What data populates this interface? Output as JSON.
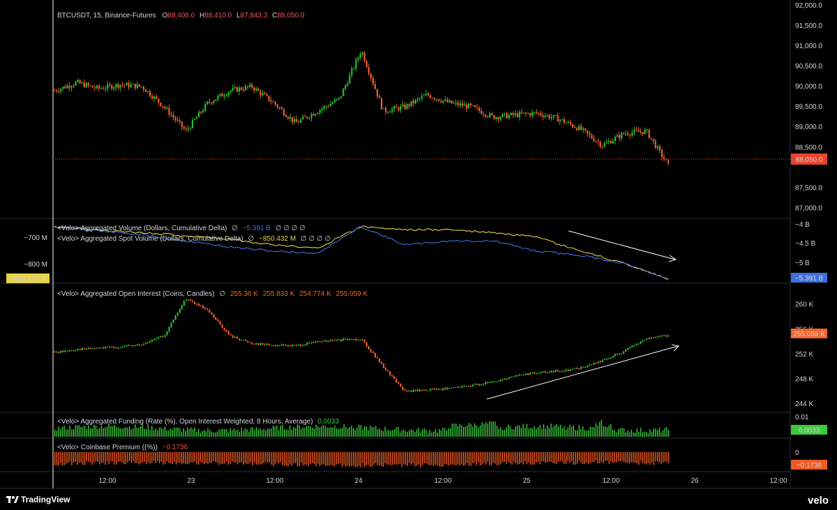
{
  "colors": {
    "background": "#000000",
    "up": "#26a69a",
    "up_bright": "#2ebd2e",
    "down": "#ef5f2a",
    "ohlc_value": "#f7525f",
    "price_line": "#e8452c",
    "delta_futures": "#3d6fe0",
    "delta_spot": "#e8d23f",
    "oi_tag": "#f2662b",
    "funding": "#3cc93c",
    "premium": "#f05a22",
    "separator": "#2a2e39",
    "text": "#d1d4dc",
    "arrow": "#ffffff"
  },
  "price_pane": {
    "symbol": "BTCUSDT, 15, Binance-Futures",
    "o_label": "O",
    "o_value": "88,406.0",
    "h_label": "H",
    "h_value": "88,410.0",
    "l_label": "L",
    "l_value": "87,843.3",
    "c_label": "C",
    "c_value": "88,050.0",
    "last_price": "88,050.0",
    "axis_labels": [
      "92,000.0",
      "91,500.0",
      "91,000.0",
      "90,500.0",
      "90,000.0",
      "89,500.0",
      "89,000.0",
      "88,500.0",
      "87,500.0",
      "87,000.0"
    ]
  },
  "delta_pane": {
    "title1": "<Velo> Aggregated Volume (Dollars, Cumulative Delta)",
    "title1_sym": "∅",
    "title1_value": "−5.391 B",
    "title1_tail": "∅ ∅ ∅ ∅",
    "title2": "<Velo> Aggregated Spot Volume (Dollars, Cumulative Delta)",
    "title2_sym": "∅",
    "title2_value": "−850.432 M",
    "title2_tail": "∅ ∅ ∅ ∅",
    "right_axis": [
      "−4 B",
      "−4.5 B",
      "−5 B"
    ],
    "left_axis": [
      "−700 M",
      "−800 M"
    ],
    "right_tag": "−5.391 B",
    "left_tag": "−850.432 M"
  },
  "oi_pane": {
    "title": "<Velo> Aggregated Open Interest (Coins, Candles)",
    "sym": "∅",
    "v1": "255.36 K",
    "v2": "255.833 K",
    "v3": "254.774 K",
    "v4": "255.059 K",
    "axis_labels": [
      "260 K",
      "256 K",
      "252 K",
      "248 K",
      "244 K"
    ],
    "tag": "255.059 K"
  },
  "funding_pane": {
    "title": "<Velo> Aggregated Funding (Rate (%), Open Interest Weighted, 8 Hours, Average)",
    "value": "0.0033",
    "axis_label": "0.01",
    "tag": "0.0033"
  },
  "premium_pane": {
    "title": "<Velo> Coinbase Premium ((%))",
    "value": "−0.1736",
    "axis_label": "0",
    "tag": "−0.1736"
  },
  "time_axis": [
    "12:00",
    "23",
    "12:00",
    "24",
    "12:00",
    "25",
    "12:00",
    "26",
    "12:00"
  ],
  "footer": {
    "tradingview": "TradingView",
    "velo": "velo"
  },
  "chart_data": [
    {
      "type": "candlestick",
      "title": "BTCUSDT, 15, Binance-Futures",
      "ylim": [
        86800,
        92000
      ],
      "x": [
        "22 06:00",
        "22 09:00",
        "22 12:00",
        "22 15:00",
        "22 18:00",
        "22 21:00",
        "23 00:00",
        "23 03:00",
        "23 06:00",
        "23 09:00",
        "23 12:00",
        "23 15:00",
        "23 18:00",
        "23 21:00",
        "24 00:00",
        "24 03:00",
        "24 06:00",
        "24 09:00",
        "24 12:00",
        "24 15:00",
        "24 18:00",
        "24 21:00",
        "25 00:00",
        "25 03:00",
        "25 06:00",
        "25 09:00",
        "25 12:00",
        "25 15:00",
        "25 18:00"
      ],
      "close": [
        89900,
        90100,
        89950,
        90050,
        90000,
        89500,
        88900,
        89600,
        89900,
        90000,
        89600,
        89100,
        89400,
        89700,
        90900,
        89400,
        89500,
        89800,
        89600,
        89500,
        89250,
        89300,
        89350,
        89200,
        88950,
        88550,
        88850,
        88900,
        88050
      ],
      "last": 88050
    },
    {
      "type": "line",
      "title": "<Velo> Aggregated Volume (Dollars, Cumulative Delta)",
      "unit": "B",
      "ylim": [
        -5.45,
        -3.95
      ],
      "x": [
        "22 06:00",
        "22 12:00",
        "22 18:00",
        "23 00:00",
        "23 06:00",
        "23 12:00",
        "23 18:00",
        "24 00:00",
        "24 06:00",
        "24 12:00",
        "24 18:00",
        "25 00:00",
        "25 06:00",
        "25 12:00",
        "25 18:00"
      ],
      "values": [
        -4.1,
        -4.2,
        -4.3,
        -4.45,
        -4.6,
        -4.7,
        -4.75,
        -4.1,
        -4.55,
        -4.45,
        -4.45,
        -4.7,
        -4.8,
        -5.0,
        -5.391
      ]
    },
    {
      "type": "line",
      "title": "<Velo> Aggregated Spot Volume (Dollars, Cumulative Delta)",
      "unit": "M",
      "ylim": [
        -860,
        -660
      ],
      "x": [
        "22 06:00",
        "22 12:00",
        "22 18:00",
        "23 00:00",
        "23 06:00",
        "23 12:00",
        "23 18:00",
        "24 00:00",
        "24 06:00",
        "24 12:00",
        "24 18:00",
        "25 00:00",
        "25 06:00",
        "25 12:00",
        "25 18:00"
      ],
      "values": [
        -680,
        -690,
        -700,
        -710,
        -720,
        -740,
        -750,
        -680,
        -690,
        -690,
        -700,
        -715,
        -760,
        -800,
        -850.432
      ]
    },
    {
      "type": "candlestick",
      "title": "<Velo> Aggregated Open Interest (Coins, Candles)",
      "unit": "K",
      "ylim": [
        243,
        263
      ],
      "x": [
        "22 06:00",
        "22 09:00",
        "22 12:00",
        "22 15:00",
        "22 18:00",
        "22 21:00",
        "23 00:00",
        "23 03:00",
        "23 06:00",
        "23 09:00",
        "23 12:00",
        "23 15:00",
        "23 18:00",
        "23 21:00",
        "24 00:00",
        "24 03:00",
        "24 06:00",
        "24 09:00",
        "24 12:00",
        "24 15:00",
        "24 18:00",
        "24 21:00",
        "25 00:00",
        "25 03:00",
        "25 06:00",
        "25 09:00",
        "25 12:00",
        "25 15:00",
        "25 18:00"
      ],
      "close": [
        252.3,
        252.8,
        253,
        253.2,
        253.6,
        255,
        261,
        259,
        255,
        253.8,
        253.5,
        253.4,
        254,
        254.3,
        254.5,
        250,
        246,
        246.3,
        246.5,
        247,
        247.5,
        248.6,
        249,
        249.3,
        249.8,
        251,
        252.5,
        254.5,
        255.059
      ]
    },
    {
      "type": "bar",
      "title": "<Velo> Aggregated Funding (Rate (%), Open Interest Weighted, 8 Hours, Average)",
      "ylim": [
        0,
        0.01
      ],
      "last": 0.0033
    },
    {
      "type": "bar",
      "title": "<Velo> Coinbase Premium ((%))",
      "ylim": [
        -0.2,
        0
      ],
      "last": -0.1736
    }
  ]
}
